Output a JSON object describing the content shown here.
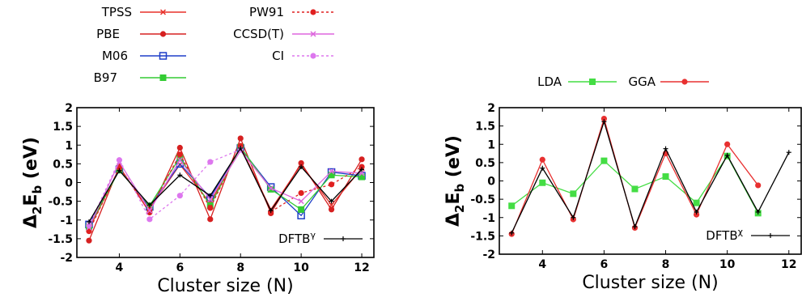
{
  "chart_data": [
    {
      "type": "line",
      "xlabel": "Cluster size (N)",
      "ylabel_main": "Δ",
      "ylabel_sub1": "2",
      "ylabel_mid": "E",
      "ylabel_sub2": "b",
      "ylabel_unit": " (eV)",
      "xlim": [
        2.6,
        12.4
      ],
      "ylim": [
        -2,
        2
      ],
      "xticks": [
        4,
        6,
        8,
        10,
        12
      ],
      "yticks": [
        -2,
        -1.5,
        -1,
        -0.5,
        0,
        0.5,
        1,
        1.5,
        2
      ],
      "inset_label": "DFTB",
      "inset_label_sup": "γ",
      "legend_position": "above",
      "series": [
        {
          "name": "TPSS",
          "color": "#e8302a",
          "dash": "",
          "marker": "x",
          "x": [
            3,
            4,
            5,
            6,
            7,
            8,
            9,
            10,
            11,
            12
          ],
          "y": [
            -1.25,
            0.38,
            -0.7,
            0.48,
            -0.55,
            0.95,
            -0.72,
            0.48,
            -0.6,
            0.38
          ]
        },
        {
          "name": "PBE",
          "color": "#d62020",
          "dash": "",
          "marker": "circle",
          "x": [
            3,
            4,
            5,
            6,
            7,
            8,
            9,
            10,
            11,
            12
          ],
          "y": [
            -1.55,
            0.43,
            -0.8,
            0.93,
            -0.98,
            1.18,
            -0.82,
            0.52,
            -0.72,
            0.62
          ]
        },
        {
          "name": "M06",
          "color": "#1f3fc8",
          "dash": "",
          "marker": "square-open",
          "x": [
            3,
            4,
            5,
            6,
            7,
            8,
            9,
            10,
            11,
            12
          ],
          "y": [
            -1.12,
            0.35,
            -0.65,
            0.5,
            -0.4,
            0.92,
            -0.12,
            -0.88,
            0.28,
            0.18
          ]
        },
        {
          "name": "B97",
          "color": "#33cc33",
          "dash": "",
          "marker": "square",
          "x": [
            3,
            4,
            5,
            6,
            7,
            8,
            9,
            10,
            11,
            12
          ],
          "y": [
            -1.18,
            0.33,
            -0.62,
            0.68,
            -0.62,
            0.95,
            -0.18,
            -0.72,
            0.2,
            0.15
          ]
        },
        {
          "name": "PW91",
          "color": "#e02020",
          "dash": "3,3",
          "marker": "circle",
          "x": [
            3,
            4,
            5,
            6,
            7,
            8,
            9,
            10,
            11,
            12
          ],
          "y": [
            -1.3,
            0.4,
            -0.72,
            0.75,
            -0.68,
            0.98,
            -0.78,
            -0.28,
            -0.05,
            0.42
          ]
        },
        {
          "name": "CCSD(T)",
          "color": "#dd66dd",
          "dash": "",
          "marker": "x",
          "x": [
            3,
            4,
            5,
            6,
            7,
            8,
            9,
            10,
            11,
            12
          ],
          "y": [
            -1.2,
            0.55,
            -0.75,
            0.6,
            -0.45,
            0.85,
            -0.15,
            -0.5,
            0.3,
            0.25
          ]
        },
        {
          "name": "CI",
          "color": "#dd77ee",
          "dash": "3,3",
          "marker": "circle",
          "x": [
            3,
            4,
            5,
            6,
            7,
            8
          ],
          "y": [
            -1.15,
            0.6,
            -0.98,
            -0.35,
            0.55,
            0.88
          ]
        },
        {
          "name": "DFTB",
          "color": "#000000",
          "dash": "",
          "marker": "plus",
          "x": [
            3,
            4,
            5,
            6,
            7,
            8,
            9,
            10,
            11,
            12
          ],
          "y": [
            -1.05,
            0.32,
            -0.6,
            0.2,
            -0.35,
            0.92,
            -0.75,
            0.42,
            -0.5,
            0.35
          ]
        }
      ]
    },
    {
      "type": "line",
      "xlabel": "Cluster size (N)",
      "ylabel_main": "Δ",
      "ylabel_sub1": "2",
      "ylabel_mid": "E",
      "ylabel_sub2": "b",
      "ylabel_unit": " (eV)",
      "xlim": [
        2.6,
        12.4
      ],
      "ylim": [
        -2,
        2
      ],
      "xticks": [
        4,
        6,
        8,
        10,
        12
      ],
      "yticks": [
        -2,
        -1.5,
        -1,
        -0.5,
        0,
        0.5,
        1,
        1.5,
        2
      ],
      "inset_label": "DFTB",
      "inset_label_sup": "χ",
      "legend_position": "above",
      "series": [
        {
          "name": "LDA",
          "color": "#44dd44",
          "dash": "",
          "marker": "square",
          "x": [
            3,
            4,
            5,
            6,
            7,
            8,
            9,
            10,
            11
          ],
          "y": [
            -0.68,
            -0.05,
            -0.35,
            0.55,
            -0.22,
            0.12,
            -0.6,
            0.68,
            -0.88
          ]
        },
        {
          "name": "GGA",
          "color": "#e83030",
          "dash": "",
          "marker": "circle",
          "x": [
            3,
            4,
            5,
            6,
            7,
            8,
            9,
            10,
            11
          ],
          "y": [
            -1.45,
            0.58,
            -1.05,
            1.7,
            -1.28,
            0.75,
            -0.92,
            1.0,
            -0.12
          ]
        },
        {
          "name": "DFTB",
          "color": "#000000",
          "dash": "",
          "marker": "plus",
          "x": [
            3,
            4,
            5,
            6,
            7,
            8,
            9,
            10,
            11,
            12
          ],
          "y": [
            -1.42,
            0.35,
            -1.0,
            1.62,
            -1.25,
            0.88,
            -0.85,
            0.7,
            -0.85,
            0.78
          ]
        }
      ]
    }
  ]
}
